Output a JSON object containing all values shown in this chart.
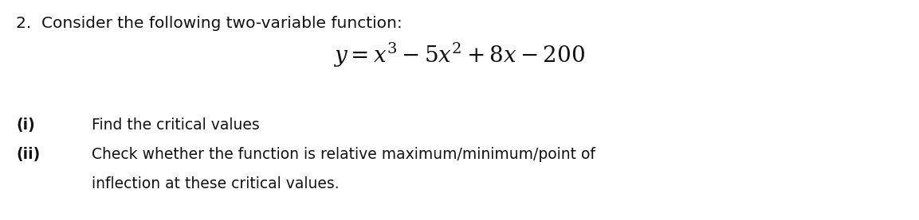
{
  "background_color": "#ffffff",
  "question_number": "2.",
  "intro_text": "Consider the following two-variable function:",
  "equation": "$y = x^3 - 5x^2 + 8x - 200$",
  "items": [
    {
      "label": "(i)",
      "text": "Find the critical values"
    },
    {
      "label": "(ii)",
      "text_line1": "Check whether the function is relative maximum/minimum/point of",
      "text_line2": "inflection at these critical values."
    }
  ],
  "font_size_intro": 14.5,
  "font_size_equation": 20,
  "font_size_items": 13.5,
  "font_size_label": 13.5,
  "text_color": "#111111",
  "fig_width": 11.53,
  "fig_height": 2.77,
  "dpi": 100
}
